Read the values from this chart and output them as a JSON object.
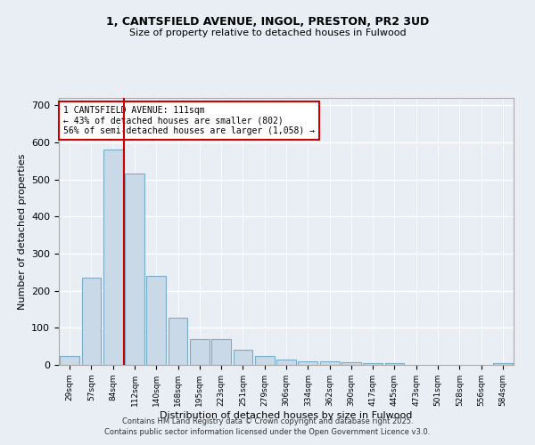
{
  "title_line1": "1, CANTSFIELD AVENUE, INGOL, PRESTON, PR2 3UD",
  "title_line2": "Size of property relative to detached houses in Fulwood",
  "xlabel": "Distribution of detached houses by size in Fulwood",
  "ylabel": "Number of detached properties",
  "categories": [
    "29sqm",
    "57sqm",
    "84sqm",
    "112sqm",
    "140sqm",
    "168sqm",
    "195sqm",
    "223sqm",
    "251sqm",
    "279sqm",
    "306sqm",
    "334sqm",
    "362sqm",
    "390sqm",
    "417sqm",
    "445sqm",
    "473sqm",
    "501sqm",
    "528sqm",
    "556sqm",
    "584sqm"
  ],
  "values": [
    25,
    235,
    580,
    515,
    240,
    128,
    70,
    70,
    40,
    25,
    15,
    10,
    10,
    8,
    5,
    6,
    0,
    0,
    0,
    0,
    5
  ],
  "bar_color": "#c9d9e8",
  "bar_edgecolor": "#7aaec8",
  "background_color": "#e8eef4",
  "grid_color": "#ffffff",
  "red_line_index": 2.5,
  "red_line_label": "1 CANTSFIELD AVENUE: 111sqm",
  "annotation_line2": "← 43% of detached houses are smaller (802)",
  "annotation_line3": "56% of semi-detached houses are larger (1,058) →",
  "annotation_box_facecolor": "#ffffff",
  "annotation_box_edgecolor": "#cc0000",
  "ylim": [
    0,
    720
  ],
  "yticks": [
    0,
    100,
    200,
    300,
    400,
    500,
    600,
    700
  ],
  "footer_line1": "Contains HM Land Registry data © Crown copyright and database right 2025.",
  "footer_line2": "Contains public sector information licensed under the Open Government Licence v3.0."
}
